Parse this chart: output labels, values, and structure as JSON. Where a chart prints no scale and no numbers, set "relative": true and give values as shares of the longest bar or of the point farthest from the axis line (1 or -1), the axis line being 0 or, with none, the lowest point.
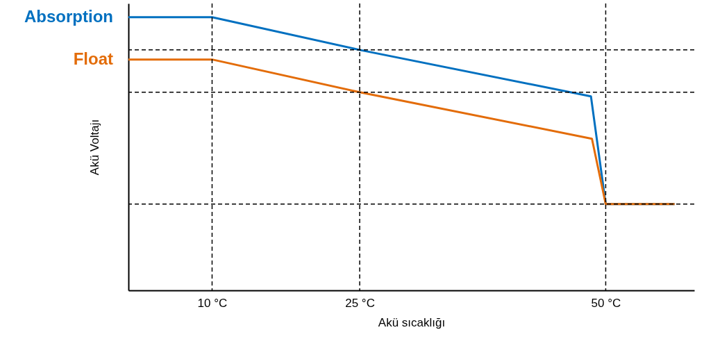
{
  "chart_data": {
    "type": "line",
    "relative": true,
    "xlabel": "Akü sıcaklığı",
    "ylabel": "Akü Voltajı",
    "xlim": [
      1.5,
      59
    ],
    "xticks": [
      {
        "value": 10,
        "label": "10 °C"
      },
      {
        "value": 25,
        "label": "25 °C"
      },
      {
        "value": 50,
        "label": "50 °C"
      }
    ],
    "series": [
      {
        "name": "Absorption",
        "color": "#0070c0",
        "x": [
          1.5,
          10,
          25,
          48.5,
          50,
          57
        ],
        "values": [
          1,
          1,
          0.88,
          0.71,
          0.316,
          0.316
        ]
      },
      {
        "name": "Float",
        "color": "#e36c09",
        "x": [
          1.5,
          10,
          25,
          48.6,
          50,
          57
        ],
        "values": [
          0.845,
          0.845,
          0.725,
          0.555,
          0.316,
          0.316
        ]
      }
    ],
    "ref_lines": [
      {
        "axis": "x",
        "value": 10,
        "line_style": "dashed",
        "color": "#000000"
      },
      {
        "axis": "x",
        "value": 25,
        "line_style": "dashed",
        "color": "#000000"
      },
      {
        "axis": "x",
        "value": 50,
        "line_style": "dashed",
        "color": "#000000"
      },
      {
        "axis": "y",
        "value": 0.88,
        "line_style": "dashed",
        "color": "#000000"
      },
      {
        "axis": "y",
        "value": 0.725,
        "line_style": "dashed",
        "color": "#000000"
      },
      {
        "axis": "y",
        "value": 0.316,
        "line_style": "dashed",
        "color": "#000000"
      }
    ],
    "legend": false,
    "grid": false,
    "marker": "none",
    "line_style": "solid"
  }
}
